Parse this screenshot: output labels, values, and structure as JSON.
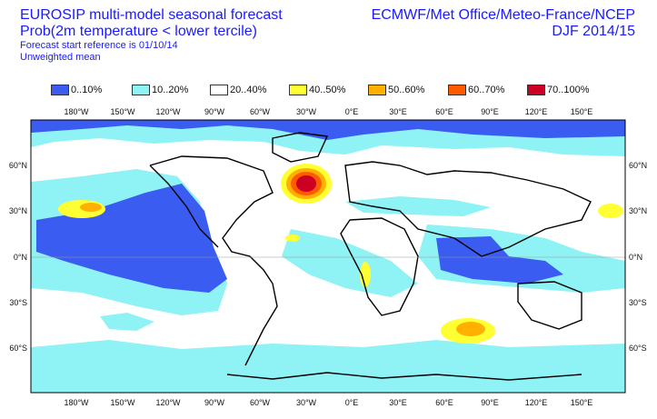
{
  "header": {
    "title_line1": "EUROSIP multi-model seasonal forecast",
    "title_line2": "Prob(2m temperature < lower tercile)",
    "forecast_start": "Forecast start reference is 01/10/14",
    "weighting": "Unweighted mean",
    "centres": "ECMWF/Met Office/Meteo-France/NCEP",
    "season": "DJF 2014/15"
  },
  "legend": [
    {
      "label": "0..10%",
      "color": "#3a5cf0"
    },
    {
      "label": "10..20%",
      "color": "#8ff2f5"
    },
    {
      "label": "20..40%",
      "color": "#ffffff"
    },
    {
      "label": "40..50%",
      "color": "#ffff33"
    },
    {
      "label": "50..60%",
      "color": "#ffb000"
    },
    {
      "label": "60..70%",
      "color": "#ff5a00"
    },
    {
      "label": "70..100%",
      "color": "#cc0022"
    }
  ],
  "axes": {
    "lon_labels": [
      "180°W",
      "150°W",
      "120°W",
      "90°W",
      "60°W",
      "30°W",
      "0°E",
      "30°E",
      "60°E",
      "90°E",
      "120°E",
      "150°E"
    ],
    "lat_labels": [
      "60°N",
      "30°N",
      "0°N",
      "30°S",
      "60°S"
    ]
  }
}
